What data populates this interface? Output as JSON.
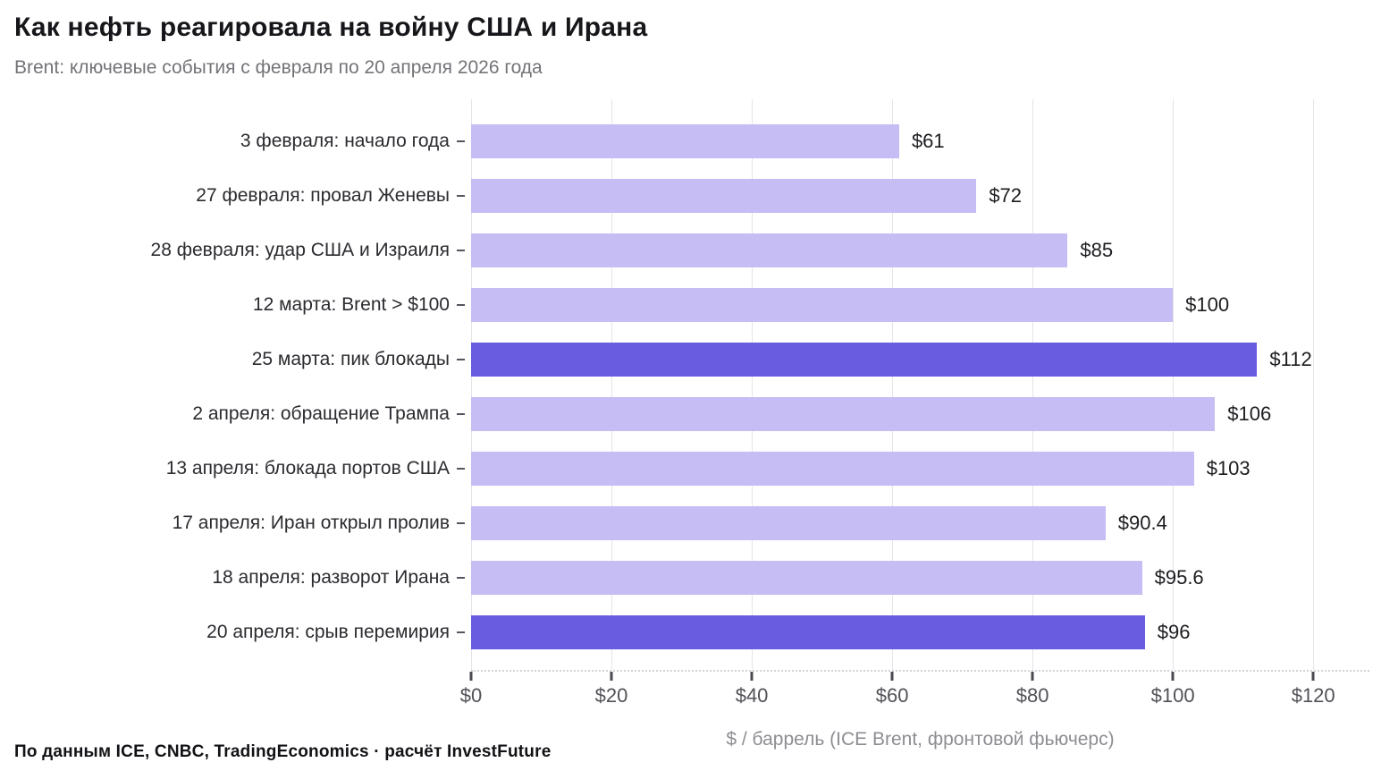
{
  "header": {
    "title": "Как нефть реагировала на войну США и Ирана",
    "subtitle": "Brent: ключевые события с февраля по 20 апреля 2026 года"
  },
  "chart_data": {
    "type": "bar",
    "orientation": "horizontal",
    "title": "Как нефть реагировала на войну США и Ирана",
    "subtitle": "Brent: ключевые события с февраля по 20 апреля 2026 года",
    "categories": [
      "3 февраля: начало года",
      "27 февраля: провал Женевы",
      "28 февраля: удар США и Израиля",
      "12 марта: Brent > $100",
      "25 марта: пик блокады",
      "2 апреля: обращение Трампа",
      "13 апреля: блокада портов США",
      "17 апреля: Иран открыл пролив",
      "18 апреля: разворот Ирана",
      "20 апреля: срыв перемирия"
    ],
    "values": [
      61,
      72,
      85,
      100,
      112,
      106,
      103,
      90.4,
      95.6,
      96
    ],
    "value_labels": [
      "$61",
      "$72",
      "$85",
      "$100",
      "$112",
      "$106",
      "$103",
      "$90.4",
      "$95.6",
      "$96"
    ],
    "highlighted": [
      false,
      false,
      false,
      false,
      true,
      false,
      false,
      false,
      false,
      true
    ],
    "xlabel": "$ / баррель (ICE Brent, фронтовой фьючерс)",
    "ylabel": "",
    "xlim": [
      0,
      128
    ],
    "xticks": {
      "values": [
        0,
        20,
        40,
        60,
        80,
        100,
        120
      ],
      "labels": [
        "$0",
        "$20",
        "$40",
        "$60",
        "$80",
        "$100",
        "$120"
      ]
    },
    "grid": "vertical",
    "legend": "none",
    "colors": {
      "bar": "#c6bdf4",
      "bar_highlight": "#6a5ce0"
    }
  },
  "footer": {
    "source": "По данным ICE, CNBC, TradingEconomics · расчёт InvestFuture"
  }
}
